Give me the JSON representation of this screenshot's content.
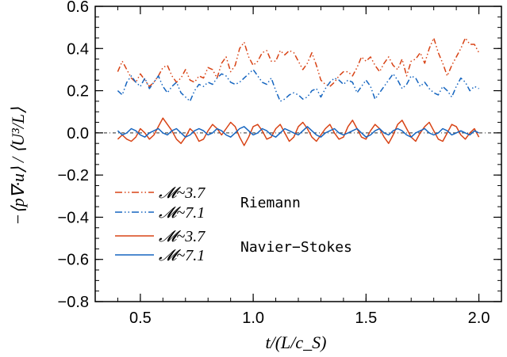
{
  "chart_data": {
    "type": "line",
    "xlabel": "t/(L/c_S)",
    "ylabel": "−⟨p∇·u⟩ / ⟨U³/L⟩",
    "xlim": [
      0.3,
      2.1
    ],
    "ylim": [
      -0.8,
      0.6
    ],
    "x_ticks": [
      0.5,
      1.0,
      1.5,
      2.0
    ],
    "y_ticks": [
      -0.8,
      -0.6,
      -0.4,
      -0.2,
      0.0,
      0.2,
      0.4,
      0.6
    ],
    "x_tick_labels": [
      "0.5",
      "1.0",
      "1.5",
      "2.0"
    ],
    "y_tick_labels": [
      "−0.8",
      "−0.6",
      "−0.4",
      "−0.2",
      "0.0",
      "0.2",
      "0.4",
      "0.6"
    ],
    "zero_line": true,
    "legend_position": "lower-left",
    "legend": {
      "riemann_group": "Riemann",
      "ns_group": "Navier−Stokes",
      "entries": [
        "𝓜~3.7",
        "𝓜~7.1",
        "𝓜~3.7",
        "𝓜~7.1"
      ]
    },
    "colors": {
      "red": "#d84315",
      "blue": "#1565c0",
      "zero": "#555555"
    },
    "x": [
      0.4,
      0.42,
      0.44,
      0.46,
      0.48,
      0.5,
      0.52,
      0.54,
      0.56,
      0.58,
      0.6,
      0.62,
      0.64,
      0.66,
      0.68,
      0.7,
      0.72,
      0.74,
      0.76,
      0.78,
      0.8,
      0.82,
      0.84,
      0.86,
      0.88,
      0.9,
      0.92,
      0.94,
      0.96,
      0.98,
      1.0,
      1.02,
      1.04,
      1.06,
      1.08,
      1.1,
      1.12,
      1.14,
      1.16,
      1.18,
      1.2,
      1.22,
      1.24,
      1.26,
      1.28,
      1.3,
      1.32,
      1.34,
      1.36,
      1.38,
      1.4,
      1.42,
      1.44,
      1.46,
      1.48,
      1.5,
      1.52,
      1.54,
      1.56,
      1.58,
      1.6,
      1.62,
      1.64,
      1.66,
      1.68,
      1.7,
      1.72,
      1.74,
      1.76,
      1.78,
      1.8,
      1.82,
      1.84,
      1.86,
      1.88,
      1.9,
      1.92,
      1.94,
      1.96,
      1.98,
      2.0
    ],
    "series": [
      {
        "name": "Riemann 𝓜~3.7",
        "style": "dash-dot-dot",
        "color_key": "red",
        "values": [
          0.29,
          0.34,
          0.3,
          0.26,
          0.24,
          0.28,
          0.25,
          0.22,
          0.24,
          0.27,
          0.31,
          0.32,
          0.27,
          0.24,
          0.26,
          0.3,
          0.25,
          0.24,
          0.27,
          0.26,
          0.31,
          0.3,
          0.26,
          0.33,
          0.36,
          0.29,
          0.32,
          0.4,
          0.43,
          0.36,
          0.32,
          0.34,
          0.38,
          0.39,
          0.34,
          0.34,
          0.39,
          0.37,
          0.39,
          0.38,
          0.34,
          0.3,
          0.33,
          0.38,
          0.32,
          0.25,
          0.23,
          0.22,
          0.24,
          0.27,
          0.29,
          0.29,
          0.27,
          0.31,
          0.36,
          0.34,
          0.36,
          0.32,
          0.29,
          0.33,
          0.36,
          0.32,
          0.3,
          0.35,
          0.27,
          0.34,
          0.35,
          0.38,
          0.33,
          0.4,
          0.45,
          0.38,
          0.33,
          0.27,
          0.32,
          0.36,
          0.4,
          0.45,
          0.42,
          0.42,
          0.38
        ]
      },
      {
        "name": "Riemann 𝓜~7.1",
        "style": "dash-dot-dot",
        "color_key": "blue",
        "values": [
          0.2,
          0.18,
          0.24,
          0.27,
          0.24,
          0.22,
          0.26,
          0.21,
          0.24,
          0.27,
          0.22,
          0.19,
          0.22,
          0.24,
          0.19,
          0.17,
          0.15,
          0.2,
          0.23,
          0.22,
          0.24,
          0.23,
          0.26,
          0.28,
          0.27,
          0.24,
          0.23,
          0.24,
          0.26,
          0.28,
          0.3,
          0.27,
          0.24,
          0.23,
          0.26,
          0.2,
          0.15,
          0.16,
          0.18,
          0.19,
          0.18,
          0.16,
          0.17,
          0.2,
          0.21,
          0.17,
          0.21,
          0.24,
          0.26,
          0.25,
          0.23,
          0.25,
          0.24,
          0.19,
          0.22,
          0.25,
          0.22,
          0.16,
          0.19,
          0.22,
          0.25,
          0.28,
          0.25,
          0.21,
          0.23,
          0.27,
          0.26,
          0.22,
          0.24,
          0.21,
          0.19,
          0.18,
          0.22,
          0.2,
          0.17,
          0.22,
          0.26,
          0.24,
          0.2,
          0.22,
          0.21
        ]
      },
      {
        "name": "Navier−Stokes 𝓜~3.7",
        "style": "solid",
        "color_key": "red",
        "values": [
          -0.03,
          -0.01,
          -0.03,
          -0.04,
          -0.02,
          0.02,
          0.0,
          -0.03,
          -0.01,
          0.03,
          0.07,
          0.04,
          0.01,
          -0.03,
          -0.05,
          -0.02,
          0.02,
          0.0,
          -0.04,
          -0.03,
          0.01,
          0.04,
          0.02,
          -0.01,
          0.02,
          0.05,
          0.03,
          -0.02,
          -0.06,
          -0.02,
          0.03,
          0.04,
          0.01,
          -0.03,
          -0.02,
          0.02,
          0.04,
          0.0,
          -0.04,
          -0.02,
          0.03,
          0.05,
          0.02,
          -0.02,
          -0.04,
          -0.01,
          0.02,
          0.04,
          0.0,
          -0.03,
          -0.02,
          0.03,
          0.06,
          0.02,
          -0.02,
          -0.03,
          0.01,
          0.04,
          0.02,
          -0.02,
          -0.05,
          -0.01,
          0.04,
          0.06,
          0.02,
          -0.02,
          -0.04,
          0.0,
          0.03,
          0.05,
          0.01,
          -0.03,
          -0.04,
          0.0,
          0.04,
          0.03,
          -0.01,
          -0.03,
          0.0,
          0.02,
          -0.02
        ]
      },
      {
        "name": "Navier−Stokes 𝓜~7.1",
        "style": "solid",
        "color_key": "blue",
        "values": [
          0.01,
          -0.01,
          0.0,
          0.02,
          0.01,
          -0.01,
          -0.02,
          0.0,
          0.01,
          0.02,
          0.0,
          -0.01,
          0.01,
          0.02,
          0.0,
          -0.02,
          -0.01,
          0.01,
          0.02,
          0.01,
          -0.01,
          0.0,
          0.02,
          0.01,
          -0.01,
          -0.02,
          0.0,
          0.02,
          0.03,
          0.01,
          -0.01,
          0.0,
          0.02,
          0.01,
          -0.01,
          -0.02,
          0.0,
          0.02,
          0.01,
          0.0,
          -0.01,
          0.01,
          0.03,
          0.01,
          -0.01,
          -0.02,
          0.0,
          0.01,
          0.02,
          0.0,
          -0.01,
          0.0,
          0.01,
          0.02,
          0.0,
          -0.02,
          -0.01,
          0.01,
          0.02,
          0.0,
          -0.01,
          0.01,
          0.02,
          0.01,
          -0.01,
          -0.02,
          0.0,
          0.01,
          0.02,
          0.0,
          -0.01,
          0.0,
          0.02,
          0.01,
          -0.01,
          0.0,
          0.01,
          0.0,
          -0.01,
          0.01,
          0.0
        ]
      }
    ]
  }
}
